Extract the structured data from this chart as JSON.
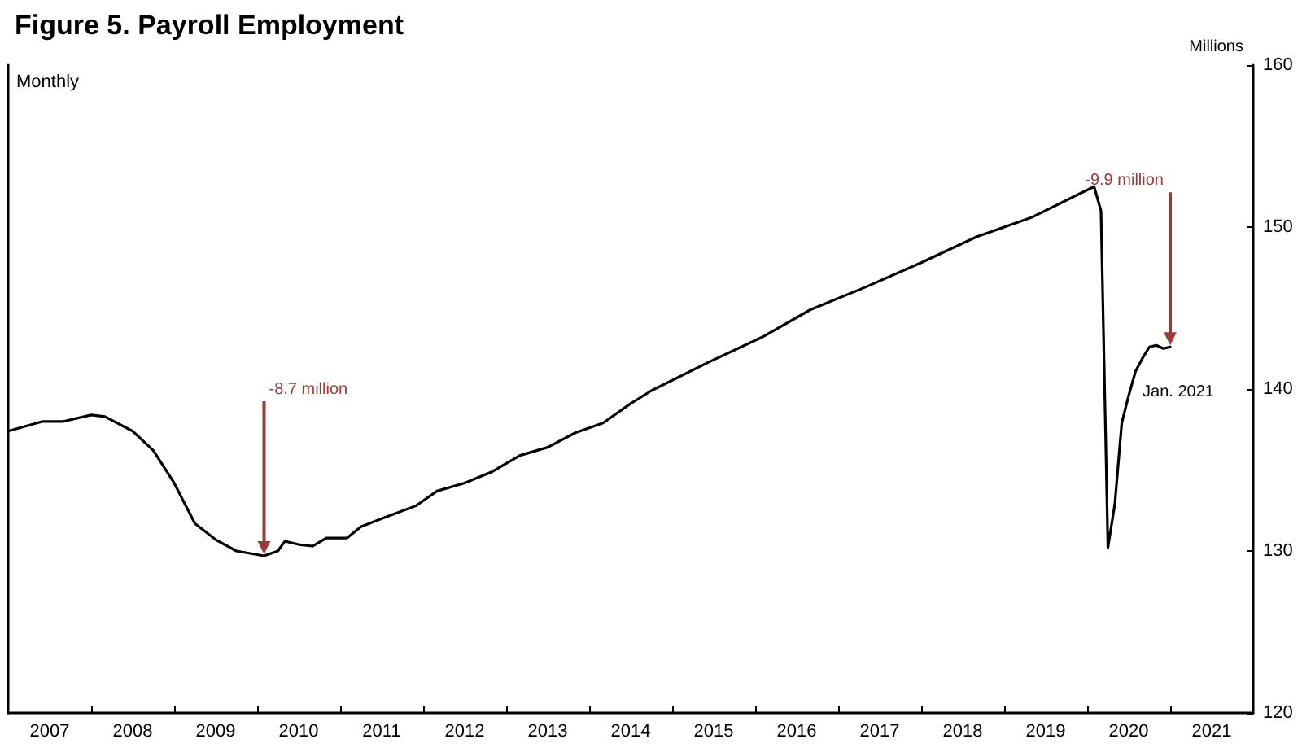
{
  "chart_data": {
    "type": "line",
    "title": "Figure 5. Payroll Employment",
    "ylabel": "Millions",
    "annotations": [
      "Monthly",
      {
        "text": "-8.7 million",
        "x": "2010-02",
        "y": 129.7
      },
      {
        "text": "-9.9 million",
        "x": "2021-01",
        "y": 142.6
      },
      {
        "text": "Jan. 2021",
        "x": "2021-01",
        "y": 142.6
      }
    ],
    "x": [
      "2007-01",
      "2007-06",
      "2007-09",
      "2008-01",
      "2008-03",
      "2008-07",
      "2008-10",
      "2009-01",
      "2009-04",
      "2009-07",
      "2009-10",
      "2010-02",
      "2010-04",
      "2010-05",
      "2010-07",
      "2010-09",
      "2010-11",
      "2011-02",
      "2011-04",
      "2011-07",
      "2011-12",
      "2012-03",
      "2012-07",
      "2012-11",
      "2013-03",
      "2013-07",
      "2013-11",
      "2014-03",
      "2014-07",
      "2014-10",
      "2015-06",
      "2016-02",
      "2016-09",
      "2017-05",
      "2018-01",
      "2018-09",
      "2019-05",
      "2020-02",
      "2020-03",
      "2020-04",
      "2020-05",
      "2020-06",
      "2020-07",
      "2020-08",
      "2020-09",
      "2020-10",
      "2020-11",
      "2020-12",
      "2021-01"
    ],
    "series": [
      {
        "color": "#000000",
        "values": [
          137.4,
          138.0,
          138.0,
          138.4,
          138.3,
          137.4,
          136.2,
          134.2,
          131.7,
          130.7,
          130.0,
          129.7,
          130.0,
          130.6,
          130.4,
          130.3,
          130.8,
          130.8,
          131.5,
          132.0,
          132.8,
          133.7,
          134.2,
          134.9,
          135.9,
          136.4,
          137.3,
          137.9,
          139.1,
          139.9,
          141.6,
          143.2,
          144.9,
          146.3,
          147.8,
          149.4,
          150.6,
          152.5,
          151.0,
          130.2,
          132.9,
          137.9,
          139.6,
          141.1,
          141.9,
          142.6,
          142.7,
          142.5,
          142.6
        ]
      }
    ],
    "xlim": [
      "2007-01",
      "2022-01"
    ],
    "xticks": [
      {
        "value": "2007-07",
        "label": "2007"
      },
      {
        "value": "2008-01",
        "label": null
      },
      {
        "value": "2008-07",
        "label": "2008"
      },
      {
        "value": "2009-01",
        "label": null
      },
      {
        "value": "2009-07",
        "label": "2009"
      },
      {
        "value": "2010-01",
        "label": null
      },
      {
        "value": "2010-07",
        "label": "2010"
      },
      {
        "value": "2011-01",
        "label": null
      },
      {
        "value": "2011-07",
        "label": "2011"
      },
      {
        "value": "2012-01",
        "label": null
      },
      {
        "value": "2012-07",
        "label": "2012"
      },
      {
        "value": "2013-01",
        "label": null
      },
      {
        "value": "2013-07",
        "label": "2013"
      },
      {
        "value": "2014-01",
        "label": null
      },
      {
        "value": "2014-07",
        "label": "2014"
      },
      {
        "value": "2015-01",
        "label": null
      },
      {
        "value": "2015-07",
        "label": "2015"
      },
      {
        "value": "2016-01",
        "label": null
      },
      {
        "value": "2016-07",
        "label": "2016"
      },
      {
        "value": "2017-01",
        "label": null
      },
      {
        "value": "2017-07",
        "label": "2017"
      },
      {
        "value": "2018-01",
        "label": null
      },
      {
        "value": "2018-07",
        "label": "2018"
      },
      {
        "value": "2019-01",
        "label": null
      },
      {
        "value": "2019-07",
        "label": "2019"
      },
      {
        "value": "2020-01",
        "label": null
      },
      {
        "value": "2020-07",
        "label": "2020"
      },
      {
        "value": "2021-01",
        "label": null
      },
      {
        "value": "2021-07",
        "label": "2021"
      }
    ],
    "ylim": [
      120,
      160
    ],
    "yticks": [
      120,
      130,
      140,
      150,
      160
    ],
    "grid": false,
    "marker": "none",
    "line_style": "solid"
  }
}
